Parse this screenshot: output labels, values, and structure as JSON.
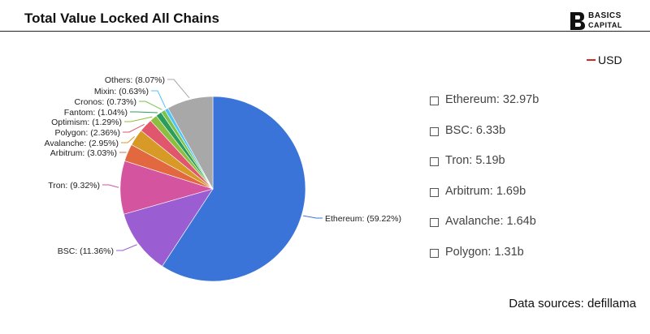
{
  "header": {
    "title": "Total Value Locked All Chains",
    "brand": {
      "line1": "BASICS",
      "line2": "CAPITAL",
      "mark": "B"
    }
  },
  "legend": {
    "label": "USD",
    "color": "#d62728"
  },
  "stats": [
    "Ethereum: 32.97b",
    "BSC: 6.33b",
    "Tron: 5.19b",
    "Arbitrum: 1.69b",
    "Avalanche: 1.64b",
    "Polygon: 1.31b"
  ],
  "source": "Data sources: defillama",
  "chart_data": {
    "type": "pie",
    "title": "Total Value Locked All Chains",
    "legend_placement": "top-right",
    "slices": [
      {
        "name": "Ethereum",
        "value": 59.22,
        "label": "Ethereum: (59.22%)",
        "color": "#3b74d9"
      },
      {
        "name": "BSC",
        "value": 11.36,
        "label": "BSC: (11.36%)",
        "color": "#9b5ed2"
      },
      {
        "name": "Tron",
        "value": 9.32,
        "label": "Tron: (9.32%)",
        "color": "#d4549f"
      },
      {
        "name": "Arbitrum",
        "value": 3.03,
        "label": "Arbitrum: (3.03%)",
        "color": "#e2683f"
      },
      {
        "name": "Avalanche",
        "value": 2.95,
        "label": "Avalanche: (2.95%)",
        "color": "#d79a26"
      },
      {
        "name": "Polygon",
        "value": 2.36,
        "label": "Polygon: (2.36%)",
        "color": "#e0566c"
      },
      {
        "name": "Optimism",
        "value": 1.29,
        "label": "Optimism: (1.29%)",
        "color": "#8cbf3f"
      },
      {
        "name": "Fantom",
        "value": 1.04,
        "label": "Fantom: (1.04%)",
        "color": "#2a9d5c"
      },
      {
        "name": "Cronos",
        "value": 0.73,
        "label": "Cronos: (0.73%)",
        "color": "#7cc24e"
      },
      {
        "name": "Mixin",
        "value": 0.63,
        "label": "Mixin: (0.63%)",
        "color": "#4fc3f7"
      },
      {
        "name": "Others",
        "value": 8.07,
        "label": "Others: (8.07%)",
        "color": "#a8a8a8"
      }
    ]
  }
}
